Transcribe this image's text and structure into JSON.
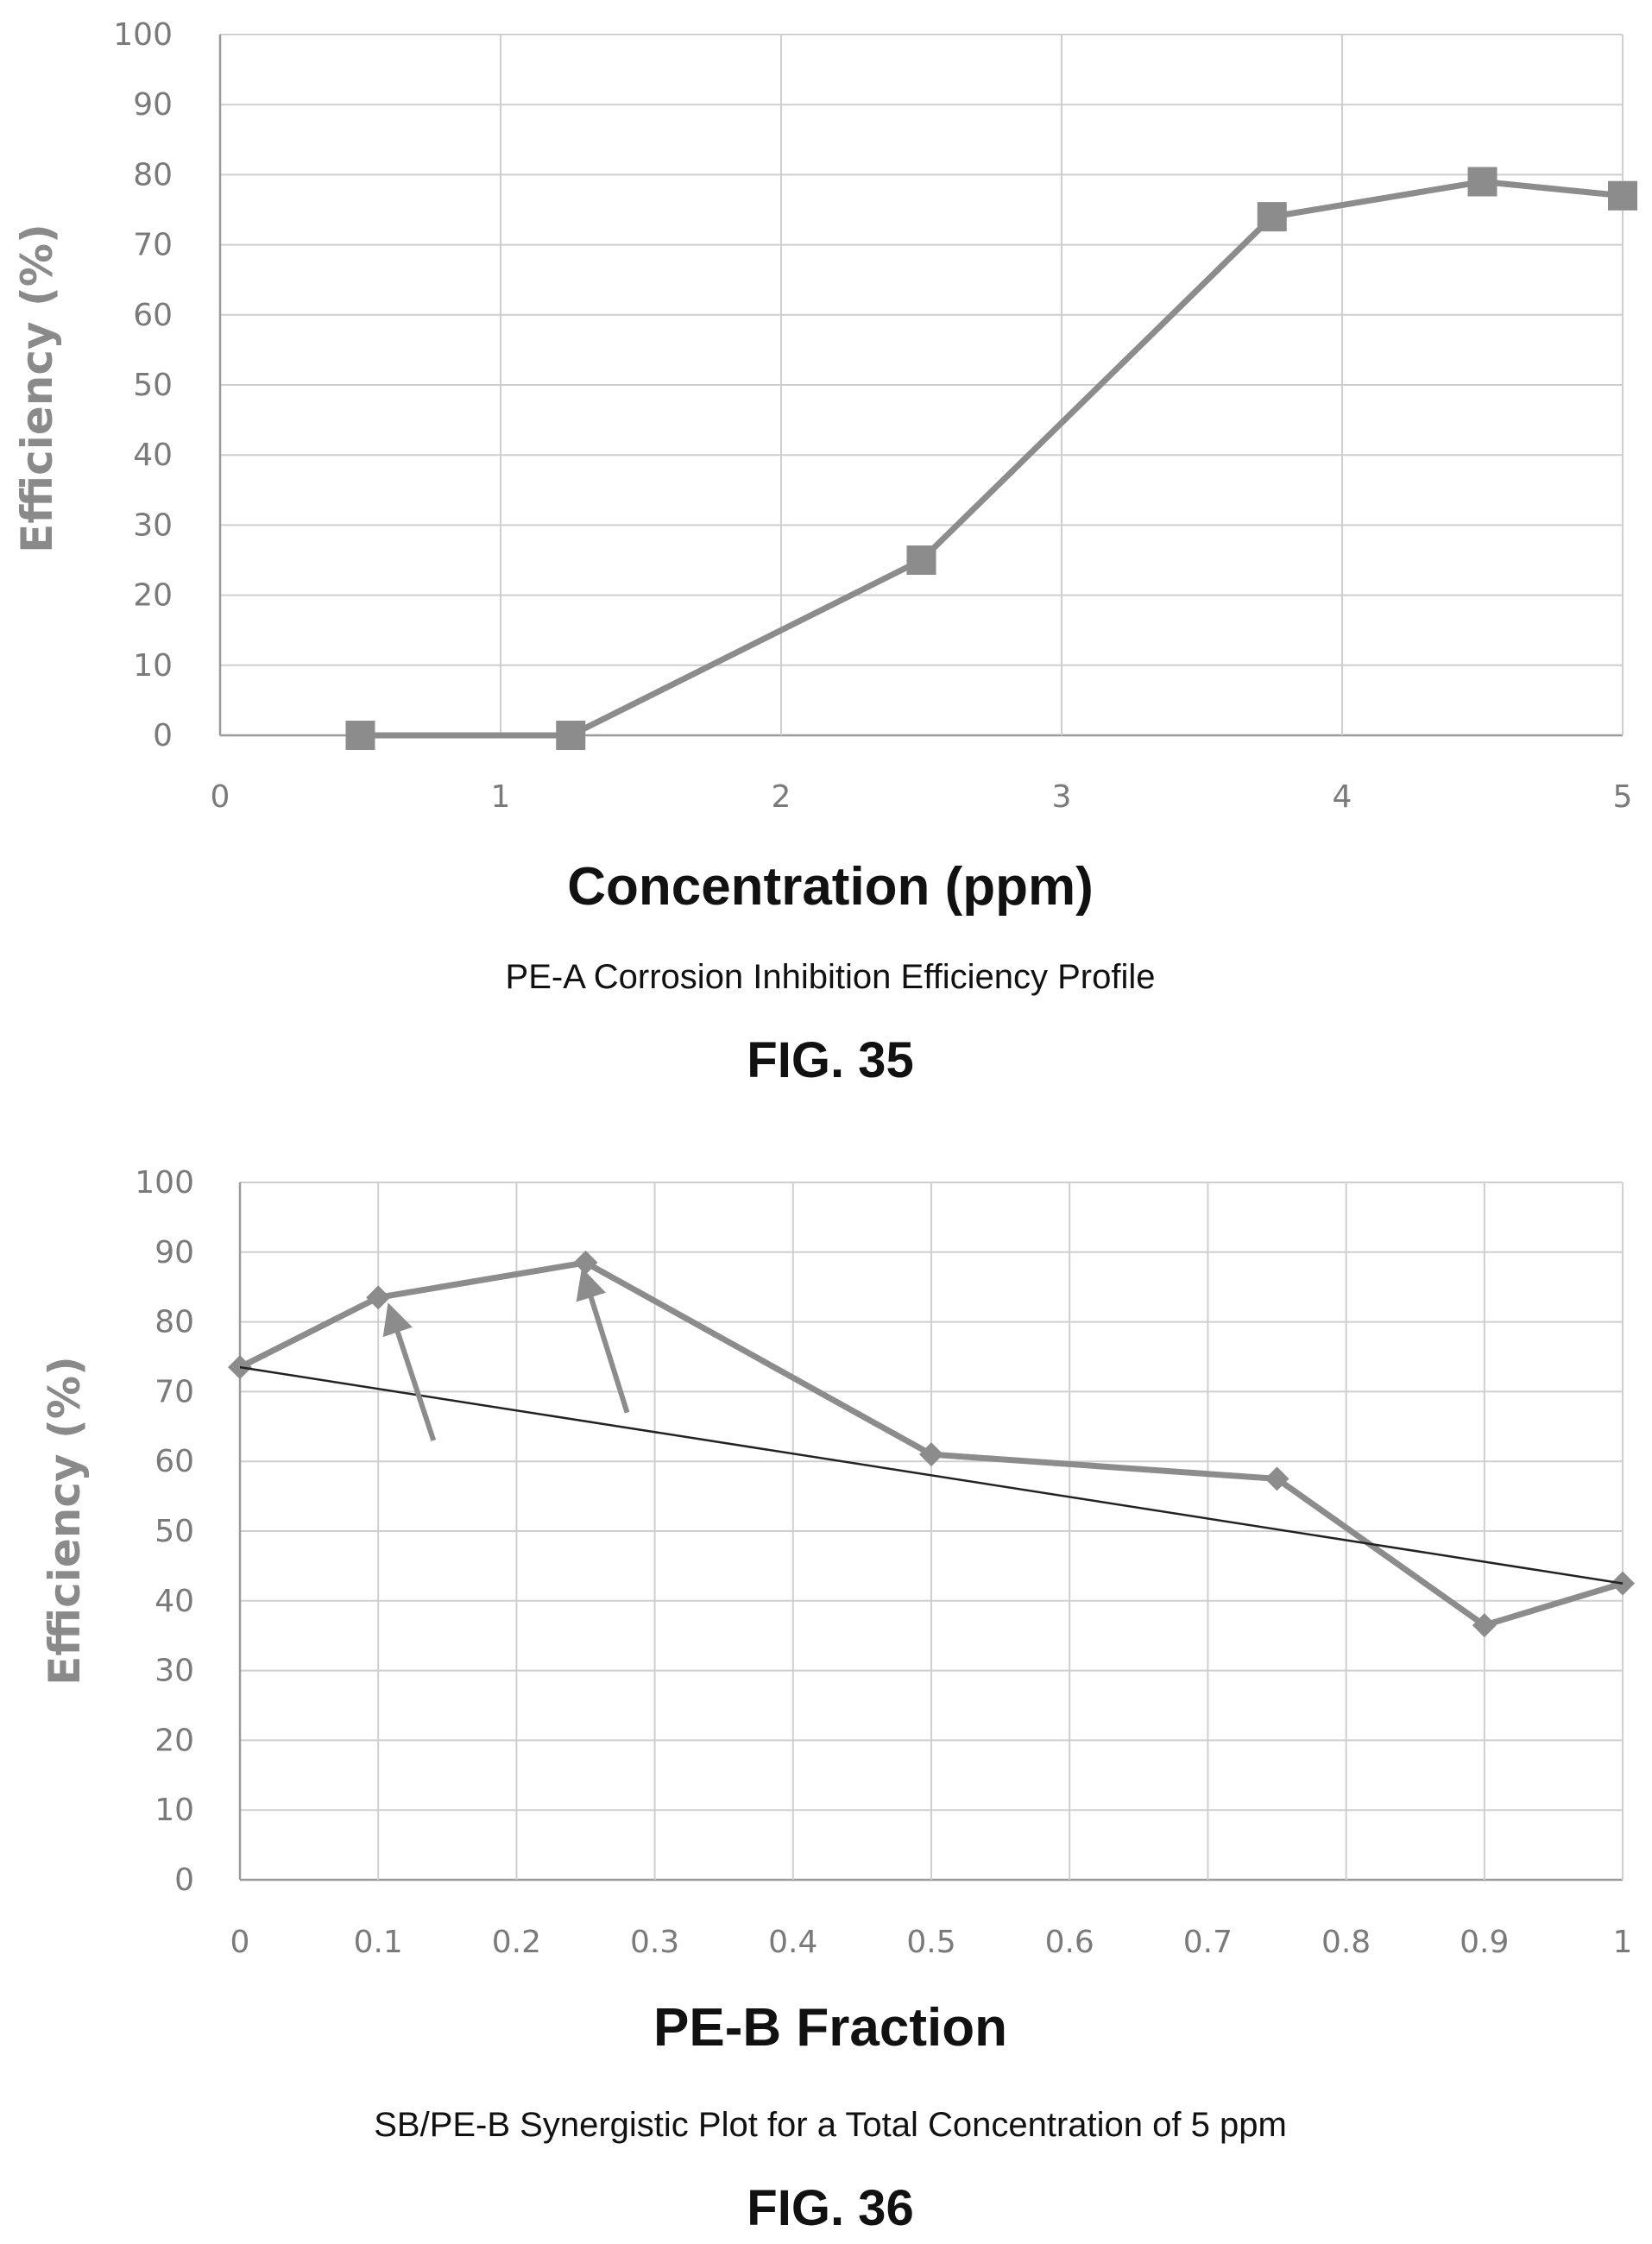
{
  "figures": [
    {
      "caption": "PE-A Corrosion Inhibition Efficiency Profile",
      "fig_label": "FIG. 35"
    },
    {
      "caption": "SB/PE-B Synergistic Plot for a Total Concentration of 5 ppm",
      "fig_label": "FIG. 36"
    }
  ],
  "chart_data": [
    {
      "type": "line",
      "title": "",
      "xlabel": "Concentration (ppm)",
      "ylabel": "Efficiency (%)",
      "xlim": [
        0,
        5
      ],
      "ylim": [
        0,
        100
      ],
      "x_ticks": [
        "0",
        "1",
        "2",
        "3",
        "4",
        "5"
      ],
      "y_ticks": [
        "0",
        "10",
        "20",
        "30",
        "40",
        "50",
        "60",
        "70",
        "80",
        "90",
        "100"
      ],
      "grid": true,
      "series": [
        {
          "marker": "square",
          "color": "#8c8c8c",
          "x": [
            0.5,
            1.25,
            2.5,
            3.75,
            4.5,
            5
          ],
          "y": [
            0,
            0,
            25,
            74,
            79,
            77
          ]
        }
      ]
    },
    {
      "type": "line",
      "title": "",
      "xlabel": "PE-B Fraction",
      "ylabel": "Efficiency (%)",
      "xlim": [
        0,
        1
      ],
      "ylim": [
        0,
        100
      ],
      "x_ticks": [
        "0",
        "0.1",
        "0.2",
        "0.3",
        "0.4",
        "0.5",
        "0.6",
        "0.7",
        "0.8",
        "0.9",
        "1"
      ],
      "y_ticks": [
        "0",
        "10",
        "20",
        "30",
        "40",
        "50",
        "60",
        "70",
        "80",
        "90",
        "100"
      ],
      "grid": true,
      "series": [
        {
          "marker": "diamond",
          "color": "#8c8c8c",
          "x": [
            0,
            0.1,
            0.25,
            0.5,
            0.75,
            0.9,
            1
          ],
          "y": [
            73.5,
            83.5,
            88.5,
            61,
            57.5,
            36.5,
            42.5
          ]
        },
        {
          "marker": "none",
          "color": "#222222",
          "x": [
            0,
            1
          ],
          "y": [
            73.5,
            42.5
          ]
        }
      ],
      "annotations": [
        {
          "type": "arrow",
          "from": [
            0.14,
            63
          ],
          "to": [
            0.11,
            81
          ]
        },
        {
          "type": "arrow",
          "from": [
            0.28,
            67
          ],
          "to": [
            0.25,
            86
          ]
        }
      ]
    }
  ]
}
